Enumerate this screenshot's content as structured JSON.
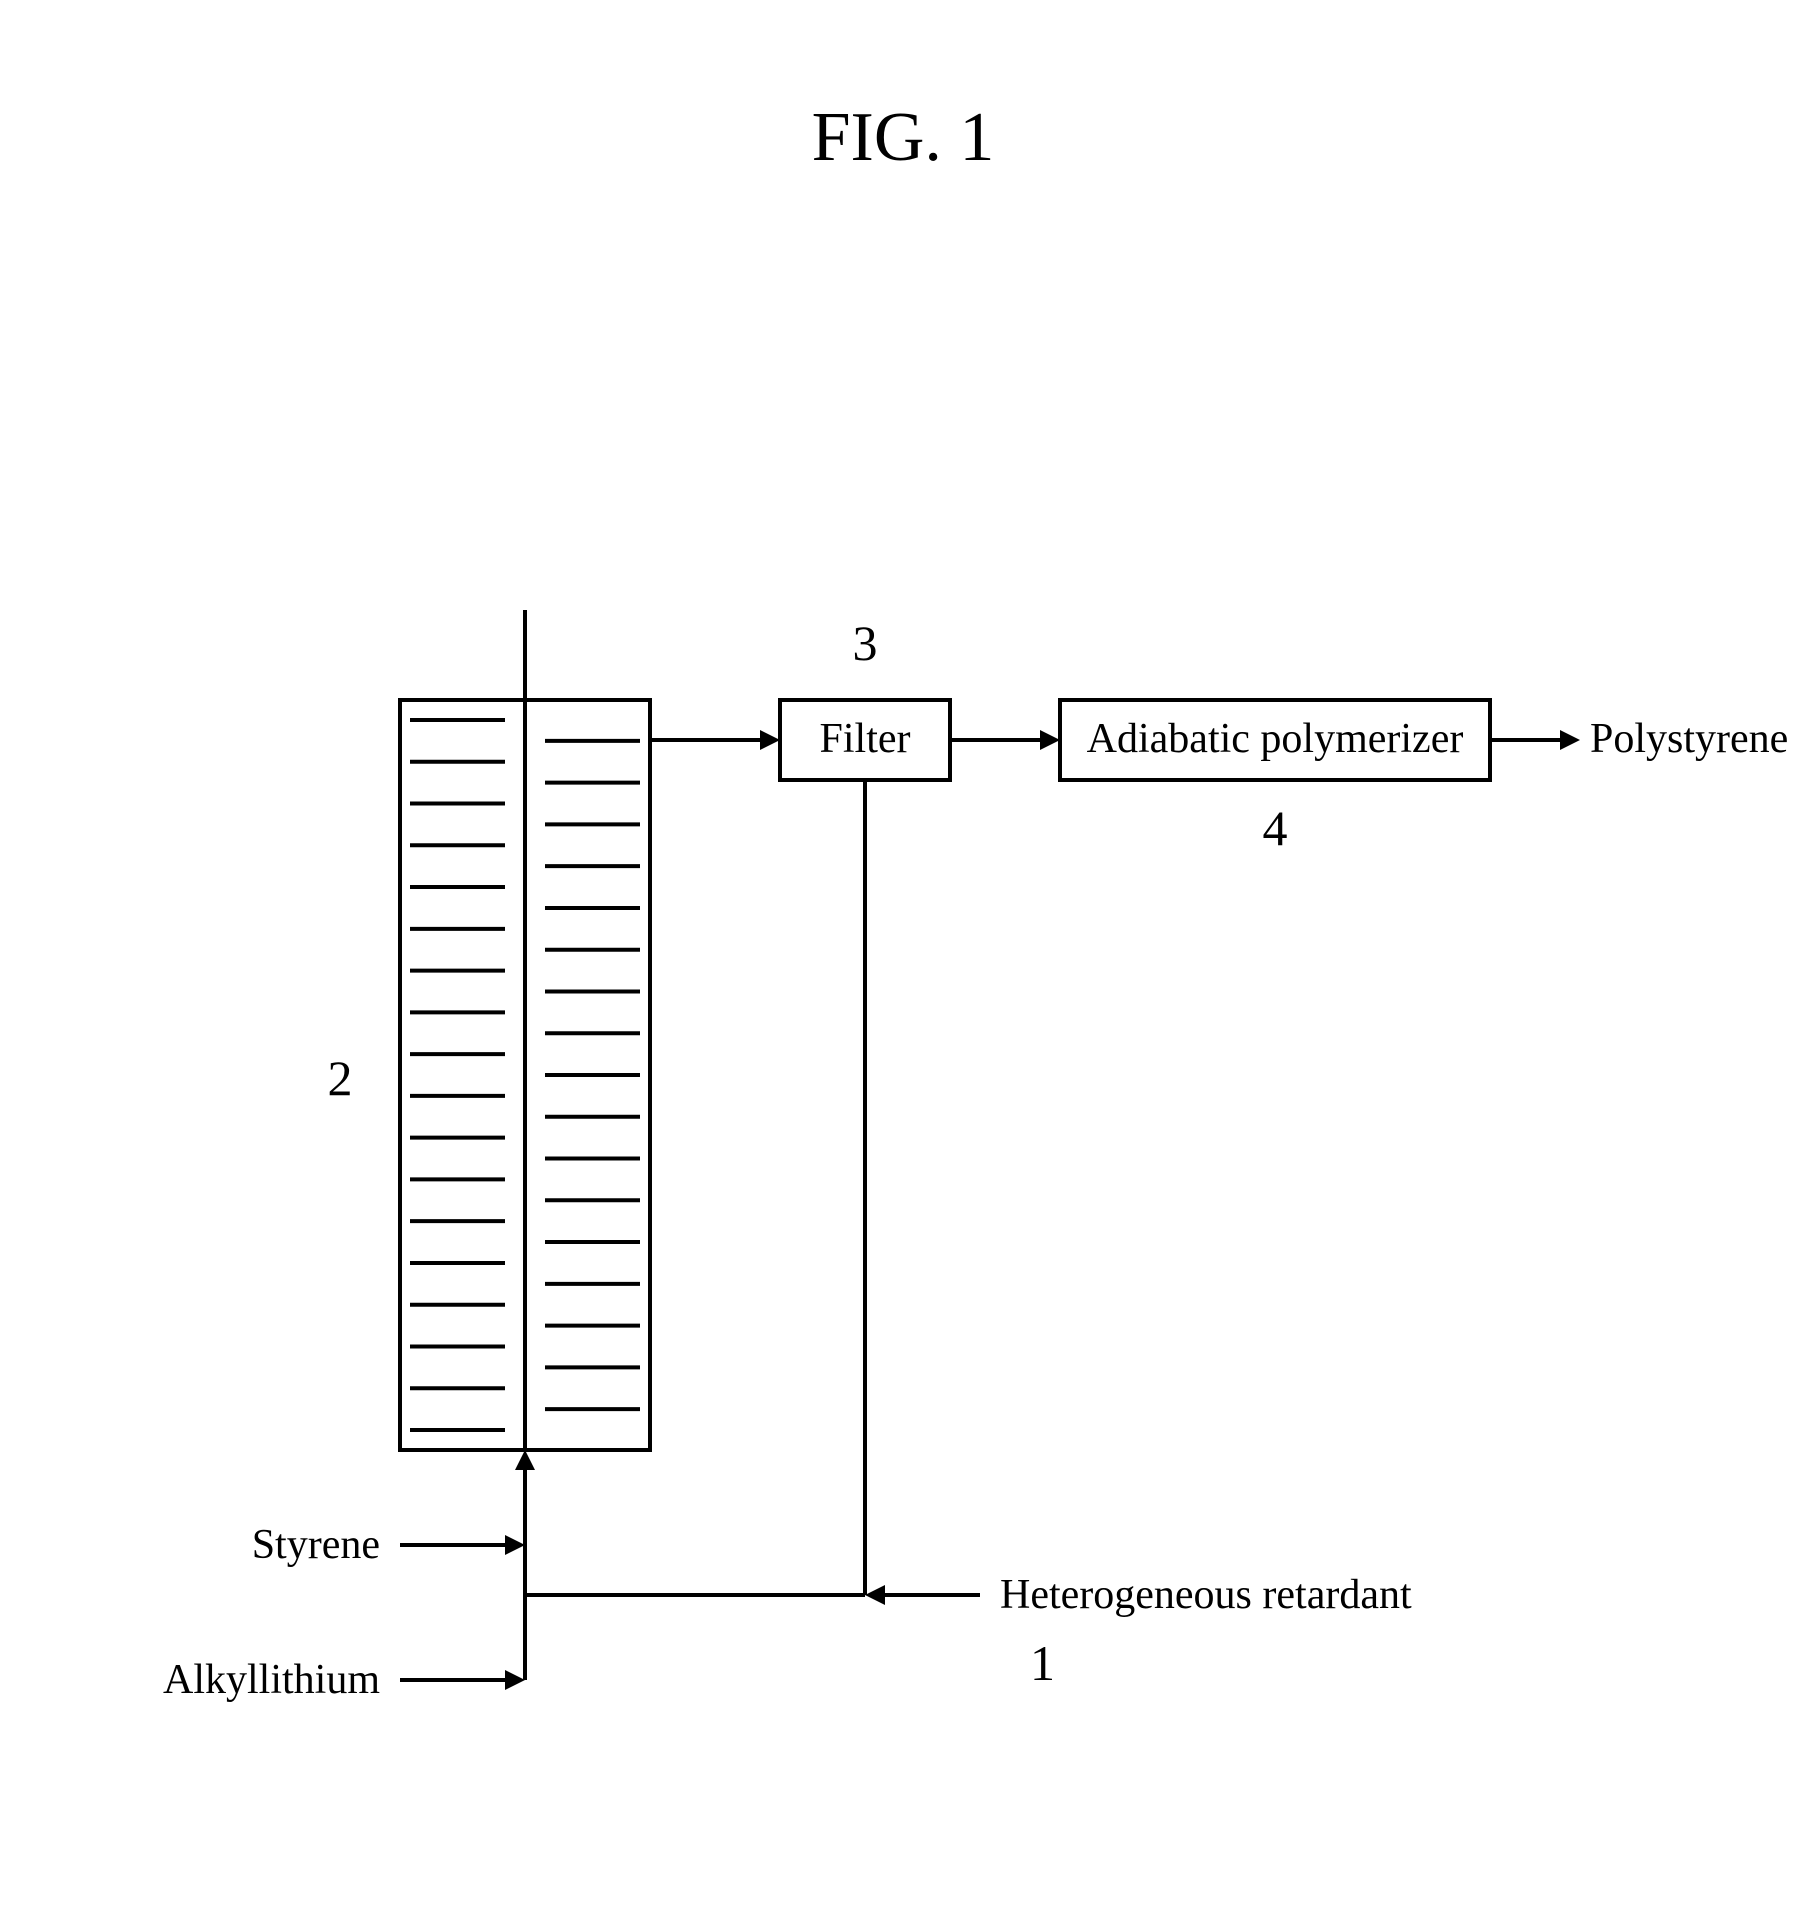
{
  "figure": {
    "title": "FIG. 1",
    "title_fontsize": 70,
    "label_fontsize": 42,
    "number_fontsize": 50,
    "stroke_color": "#000000",
    "stroke_width": 4,
    "background_color": "#ffffff",
    "tray_fill_line_count": 18
  },
  "nodes": {
    "reactor_column": {
      "number_label": "2"
    },
    "filter": {
      "label": "Filter",
      "number_label": "3"
    },
    "polymerizer": {
      "label": "Adiabatic polymerizer",
      "number_label": "4"
    },
    "retardant": {
      "label": "Heterogeneous retardant",
      "number_label": "1"
    }
  },
  "inputs": {
    "styrene": {
      "label": "Styrene"
    },
    "alkyllithium": {
      "label": "Alkyllithium"
    }
  },
  "output": {
    "polystyrene": {
      "label": "Polystyrene"
    }
  }
}
